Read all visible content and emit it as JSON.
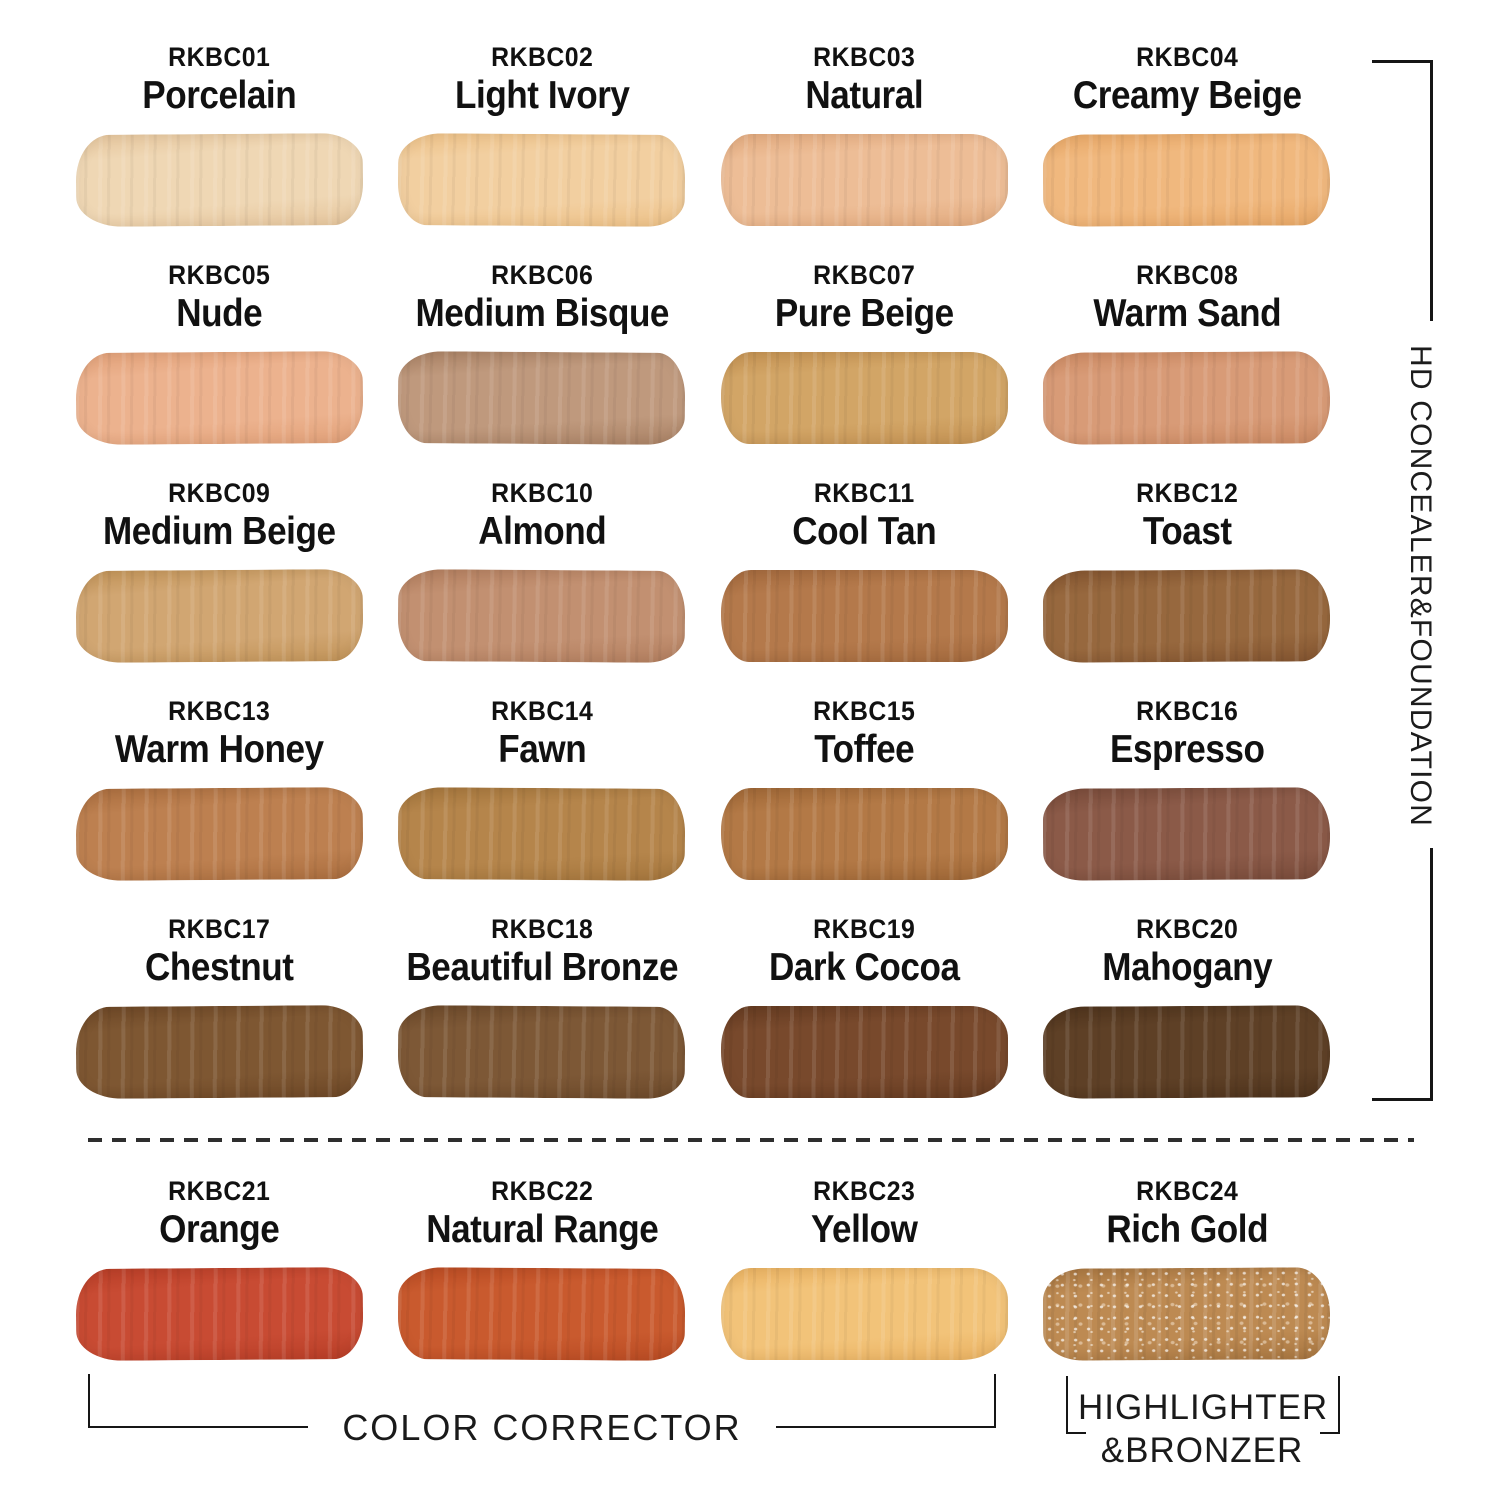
{
  "side_label": "HD CONCEALER&FOUNDATION",
  "bottom_labels": {
    "color_corrector": "COLOR CORRECTOR",
    "highlighter_line1": "HIGHLIGHTER",
    "highlighter_line2": "&BRONZER"
  },
  "swatches": [
    {
      "code": "RKBC01",
      "name": "Porcelain",
      "color": "#efd7b4",
      "edge": "#e5c59c"
    },
    {
      "code": "RKBC02",
      "name": "Light Ivory",
      "color": "#f2cfa0",
      "edge": "#ecc086"
    },
    {
      "code": "RKBC03",
      "name": "Natural",
      "color": "#edbd96",
      "edge": "#e2aa7e"
    },
    {
      "code": "RKBC04",
      "name": "Creamy Beige",
      "color": "#f0b87e",
      "edge": "#e7a766"
    },
    {
      "code": "RKBC05",
      "name": "Nude",
      "color": "#ecb28e",
      "edge": "#e1a078"
    },
    {
      "code": "RKBC06",
      "name": "Medium Bisque",
      "color": "#bf997d",
      "edge": "#a98164"
    },
    {
      "code": "RKBC07",
      "name": "Pure Beige",
      "color": "#d2a566",
      "edge": "#c39152"
    },
    {
      "code": "RKBC08",
      "name": "Warm Sand",
      "color": "#d89b77",
      "edge": "#cb8962"
    },
    {
      "code": "RKBC09",
      "name": "Medium Beige",
      "color": "#d1a672",
      "edge": "#c19358"
    },
    {
      "code": "RKBC10",
      "name": "Almond",
      "color": "#c29071",
      "edge": "#b27e5e"
    },
    {
      "code": "RKBC11",
      "name": "Cool Tan",
      "color": "#b4794b",
      "edge": "#a3693d"
    },
    {
      "code": "RKBC12",
      "name": "Toast",
      "color": "#97683e",
      "edge": "#845530"
    },
    {
      "code": "RKBC13",
      "name": "Warm Honey",
      "color": "#bd8050",
      "edge": "#ab6e3f"
    },
    {
      "code": "RKBC14",
      "name": "Fawn",
      "color": "#b5854b",
      "edge": "#a4753c"
    },
    {
      "code": "RKBC15",
      "name": "Toffee",
      "color": "#b37946",
      "edge": "#9f6736"
    },
    {
      "code": "RKBC16",
      "name": "Espresso",
      "color": "#8b5a48",
      "edge": "#794b3a"
    },
    {
      "code": "RKBC17",
      "name": "Chestnut",
      "color": "#7e5732",
      "edge": "#6d4726"
    },
    {
      "code": "RKBC18",
      "name": "Beautiful Bronze",
      "color": "#7d5836",
      "edge": "#6c492a"
    },
    {
      "code": "RKBC19",
      "name": "Dark Cocoa",
      "color": "#78492c",
      "edge": "#653b21"
    },
    {
      "code": "RKBC20",
      "name": "Mahogany",
      "color": "#5e4026",
      "edge": "#4e331c"
    },
    {
      "code": "RKBC21",
      "name": "Orange",
      "color": "#c84b33",
      "edge": "#b83e27"
    },
    {
      "code": "RKBC22",
      "name": "Natural Range",
      "color": "#c95a2e",
      "edge": "#b94b23"
    },
    {
      "code": "RKBC23",
      "name": "Yellow",
      "color": "#f2c379",
      "edge": "#e9b161"
    },
    {
      "code": "RKBC24",
      "name": "Rich Gold",
      "color": "#bd8a52",
      "edge": "#a77540",
      "shimmer": true
    }
  ]
}
